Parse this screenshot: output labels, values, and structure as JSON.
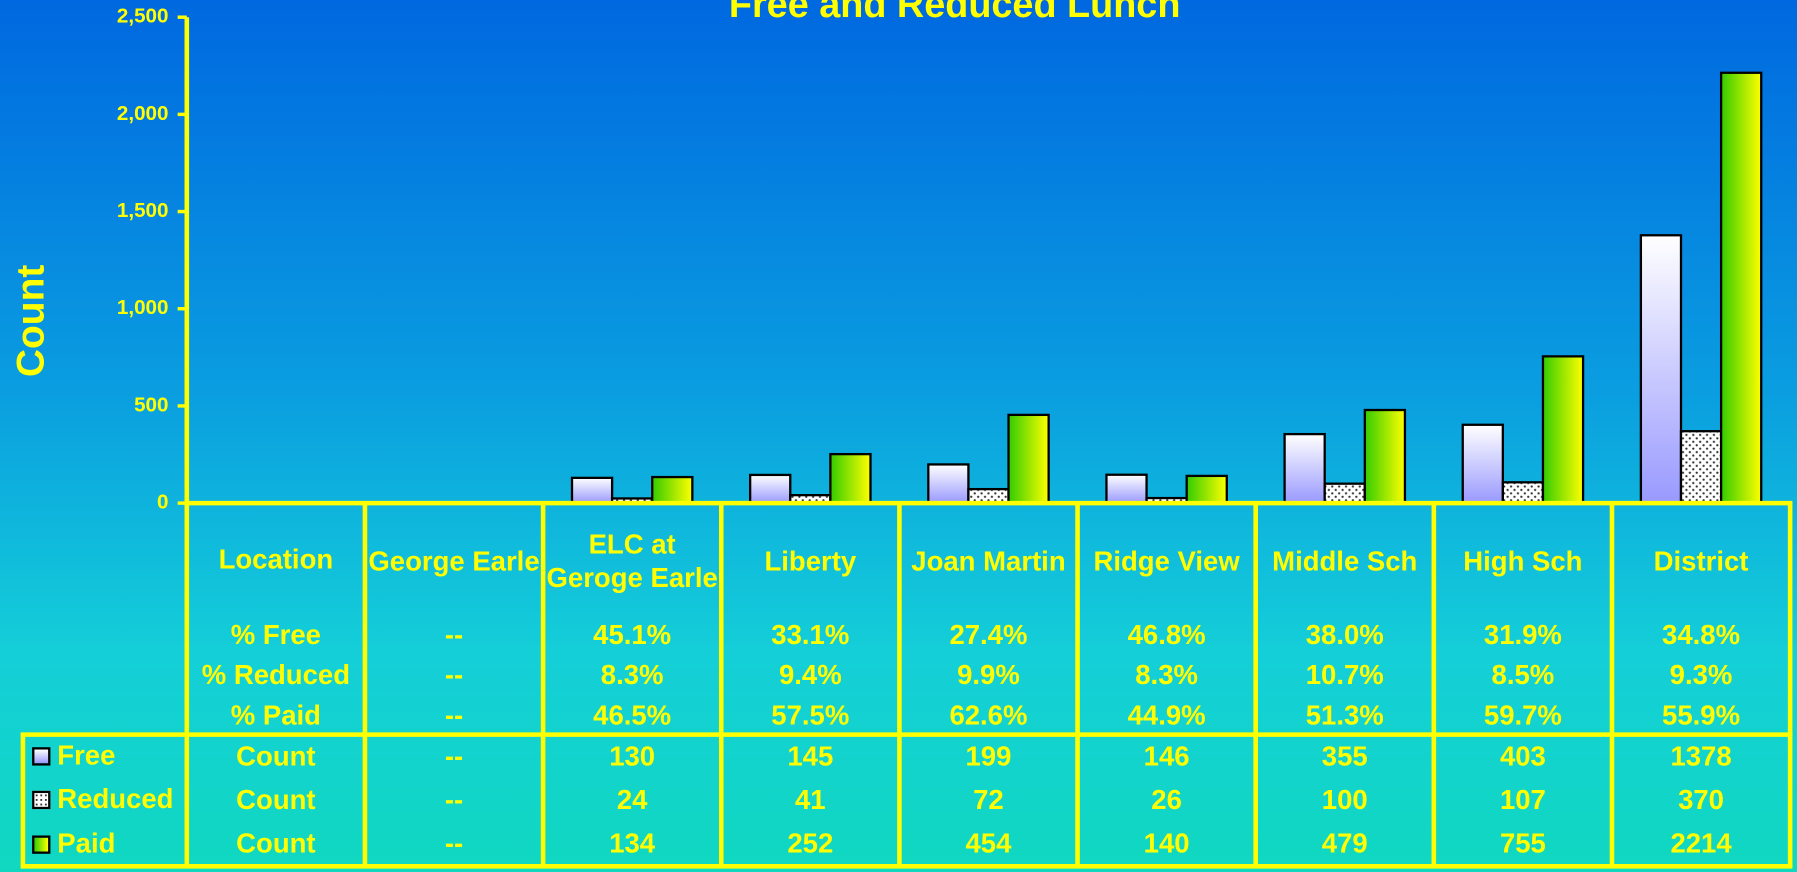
{
  "chart_data": {
    "type": "bar",
    "title": "Free and Reduced Lunch",
    "y_label": "Count",
    "ylim": [
      0,
      2500
    ],
    "yticks": [
      0,
      500,
      {
        "value": 1000,
        "label": "1,000"
      },
      {
        "value": 1500,
        "label": "1,500"
      },
      {
        "value": 2000,
        "label": "2,000"
      },
      {
        "value": 2500,
        "label": "2,500"
      }
    ],
    "table_header": "Location",
    "count_label": "Count",
    "categories": [
      "George Earle",
      "ELC at Geroge Earle",
      "Liberty",
      "Joan Martin",
      "Ridge View",
      "Middle Sch",
      "High Sch",
      "District"
    ],
    "percent_rows": [
      {
        "name": "% Free",
        "values": [
          null,
          45.1,
          33.1,
          27.4,
          46.8,
          38.0,
          31.9,
          34.8
        ],
        "value_labels": [
          "--",
          "45.1%",
          "33.1%",
          "27.4%",
          "46.8%",
          "38.0%",
          "31.9%",
          "34.8%"
        ]
      },
      {
        "name": "% Reduced",
        "values": [
          null,
          8.3,
          9.4,
          9.9,
          8.3,
          10.7,
          8.5,
          9.3
        ],
        "value_labels": [
          "--",
          "8.3%",
          "9.4%",
          "9.9%",
          "8.3%",
          "10.7%",
          "8.5%",
          "9.3%"
        ]
      },
      {
        "name": "% Paid",
        "values": [
          null,
          46.5,
          57.5,
          62.6,
          44.9,
          51.3,
          59.7,
          55.9
        ],
        "value_labels": [
          "--",
          "46.5%",
          "57.5%",
          "62.6%",
          "44.9%",
          "51.3%",
          "59.7%",
          "55.9%"
        ]
      }
    ],
    "series": [
      {
        "name": "Free",
        "color": "#9999ff",
        "values": [
          null,
          130,
          145,
          199,
          146,
          355,
          403,
          1378
        ],
        "value_labels": [
          "--",
          "130",
          "145",
          "199",
          "146",
          "355",
          "403",
          "1378"
        ]
      },
      {
        "name": "Reduced",
        "color": "#ffffff",
        "values": [
          null,
          24,
          41,
          72,
          26,
          100,
          107,
          370
        ],
        "value_labels": [
          "--",
          "24",
          "41",
          "72",
          "26",
          "100",
          "107",
          "370"
        ]
      },
      {
        "name": "Paid",
        "color": "#33cc00",
        "values": [
          null,
          134,
          252,
          454,
          140,
          479,
          755,
          2214
        ],
        "value_labels": [
          "--",
          "134",
          "252",
          "454",
          "140",
          "479",
          "755",
          "2214"
        ]
      }
    ]
  }
}
